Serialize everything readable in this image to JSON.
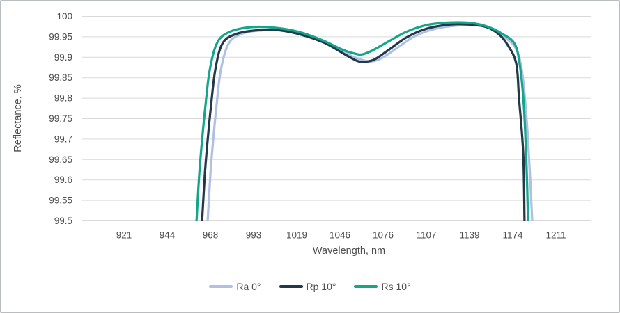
{
  "chart_data": {
    "type": "line",
    "title": "",
    "xlabel": "Wavelength, nm",
    "ylabel": "Reflectance, %",
    "grid": "horizontal",
    "legend_position": "bottom",
    "colors": {
      "gridline": "#d9d9d9",
      "axis_text": "#4d4d4d"
    },
    "x_axis": {
      "type": "category",
      "tick_values": [
        921,
        944,
        968,
        993,
        1019,
        1046,
        1076,
        1107,
        1139,
        1174,
        1211
      ]
    },
    "y_axis": {
      "min": 99.5,
      "max": 100,
      "step": 0.05
    },
    "series": [
      {
        "name": "Ra 0°",
        "color": "#AFC0E4",
        "points": [
          [
            966.5,
            99.5
          ],
          [
            968.0,
            99.613
          ],
          [
            969.6,
            99.698
          ],
          [
            971.6,
            99.783
          ],
          [
            974.0,
            99.868
          ],
          [
            978.5,
            99.933
          ],
          [
            986.5,
            99.958
          ],
          [
            999.3,
            99.966
          ],
          [
            1012.7,
            99.965
          ],
          [
            1026.4,
            99.953
          ],
          [
            1040.2,
            99.929
          ],
          [
            1054.7,
            99.902
          ],
          [
            1062.9,
            99.892
          ],
          [
            1068.2,
            99.89
          ],
          [
            1075.5,
            99.899
          ],
          [
            1086.5,
            99.924
          ],
          [
            1099.0,
            99.952
          ],
          [
            1114.2,
            99.97
          ],
          [
            1131.3,
            99.978
          ],
          [
            1146.6,
            99.978
          ],
          [
            1157.9,
            99.969
          ],
          [
            1166.9,
            99.95
          ],
          [
            1176.4,
            99.923
          ],
          [
            1181.8,
            99.868
          ],
          [
            1185.9,
            99.749
          ],
          [
            1188.9,
            99.605
          ],
          [
            1190.7,
            99.5
          ]
        ]
      },
      {
        "name": "Rp 10°",
        "color": "#22394A",
        "points": [
          [
            963.4,
            99.5
          ],
          [
            964.9,
            99.613
          ],
          [
            966.5,
            99.698
          ],
          [
            968.4,
            99.783
          ],
          [
            970.8,
            99.868
          ],
          [
            974.9,
            99.933
          ],
          [
            982.9,
            99.957
          ],
          [
            995.1,
            99.966
          ],
          [
            1008.5,
            99.966
          ],
          [
            1021.9,
            99.955
          ],
          [
            1036.4,
            99.935
          ],
          [
            1049.9,
            99.906
          ],
          [
            1058.1,
            99.891
          ],
          [
            1063.4,
            99.889
          ],
          [
            1070.2,
            99.895
          ],
          [
            1080.4,
            99.919
          ],
          [
            1093.0,
            99.949
          ],
          [
            1107.5,
            99.97
          ],
          [
            1124.6,
            99.98
          ],
          [
            1138.5,
            99.98
          ],
          [
            1152.6,
            99.974
          ],
          [
            1162.4,
            99.957
          ],
          [
            1169.7,
            99.931
          ],
          [
            1177.0,
            99.885
          ],
          [
            1179.4,
            99.8
          ],
          [
            1183.0,
            99.664
          ],
          [
            1184.1,
            99.5
          ]
        ]
      },
      {
        "name": "Rs 10°",
        "color": "#13A68A",
        "points": [
          [
            960.3,
            99.5
          ],
          [
            961.8,
            99.613
          ],
          [
            963.4,
            99.698
          ],
          [
            965.3,
            99.783
          ],
          [
            967.6,
            99.868
          ],
          [
            972.0,
            99.936
          ],
          [
            979.7,
            99.963
          ],
          [
            992.6,
            99.974
          ],
          [
            1006.4,
            99.972
          ],
          [
            1020.3,
            99.962
          ],
          [
            1034.2,
            99.943
          ],
          [
            1047.5,
            99.919
          ],
          [
            1056.2,
            99.909
          ],
          [
            1061.5,
            99.907
          ],
          [
            1068.2,
            99.916
          ],
          [
            1079.5,
            99.938
          ],
          [
            1092.5,
            99.962
          ],
          [
            1107.5,
            99.979
          ],
          [
            1124.6,
            99.985
          ],
          [
            1140.0,
            99.984
          ],
          [
            1153.4,
            99.975
          ],
          [
            1165.2,
            99.958
          ],
          [
            1175.6,
            99.933
          ],
          [
            1180.0,
            99.882
          ],
          [
            1183.5,
            99.783
          ],
          [
            1185.9,
            99.63
          ],
          [
            1187.1,
            99.5
          ]
        ]
      }
    ]
  }
}
